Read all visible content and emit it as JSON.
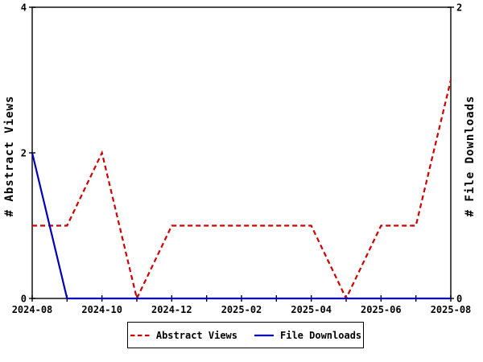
{
  "chart_data": {
    "type": "line",
    "title": "",
    "x": [
      "2024-08",
      "2024-09",
      "2024-10",
      "2024-11",
      "2024-12",
      "2025-01",
      "2025-02",
      "2025-03",
      "2025-04",
      "2025-05",
      "2025-06",
      "2025-07",
      "2025-08"
    ],
    "x_tick_labels": [
      "2024-08",
      "2024-10",
      "2024-12",
      "2025-02",
      "2025-04",
      "2025-06",
      "2025-08"
    ],
    "x_tick_every": 2,
    "series": [
      {
        "name": "Abstract Views",
        "axis": "left",
        "style": "dashed",
        "color": "#cc0000",
        "values": [
          1,
          1,
          2,
          0,
          1,
          1,
          1,
          1,
          1,
          0,
          1,
          1,
          3
        ]
      },
      {
        "name": "File Downloads",
        "axis": "right",
        "style": "solid",
        "color": "#0000bb",
        "values": [
          1,
          0,
          0,
          0,
          0,
          0,
          0,
          0,
          0,
          0,
          0,
          0,
          0
        ]
      }
    ],
    "axes": {
      "left": {
        "label": "# Abstract Views",
        "min": 0,
        "max": 4,
        "ticks": [
          0,
          2,
          4
        ]
      },
      "right": {
        "label": "# File Downloads",
        "min": 0,
        "max": 2,
        "ticks": [
          0,
          2
        ]
      }
    },
    "grid": false,
    "legend_position": "bottom",
    "border_color": "#000000",
    "background": "#ffffff"
  }
}
